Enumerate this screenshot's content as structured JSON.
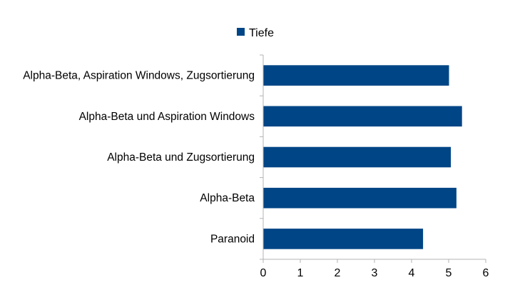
{
  "chart_data": {
    "type": "bar",
    "orientation": "horizontal",
    "categories": [
      "Alpha-Beta, Aspiration Windows, Zugsortierung",
      "Alpha-Beta und Aspiration Windows",
      "Alpha-Beta und Zugsortierung",
      "Alpha-Beta",
      "Paranoid"
    ],
    "series": [
      {
        "name": "Tiefe",
        "color": "#004586",
        "values": [
          5.0,
          5.35,
          5.05,
          5.2,
          4.3
        ]
      }
    ],
    "xlim": [
      0,
      6
    ],
    "xticks": [
      "0",
      "1",
      "2",
      "3",
      "4",
      "5",
      "6"
    ],
    "grid": false,
    "legend": {
      "position": "top"
    }
  }
}
